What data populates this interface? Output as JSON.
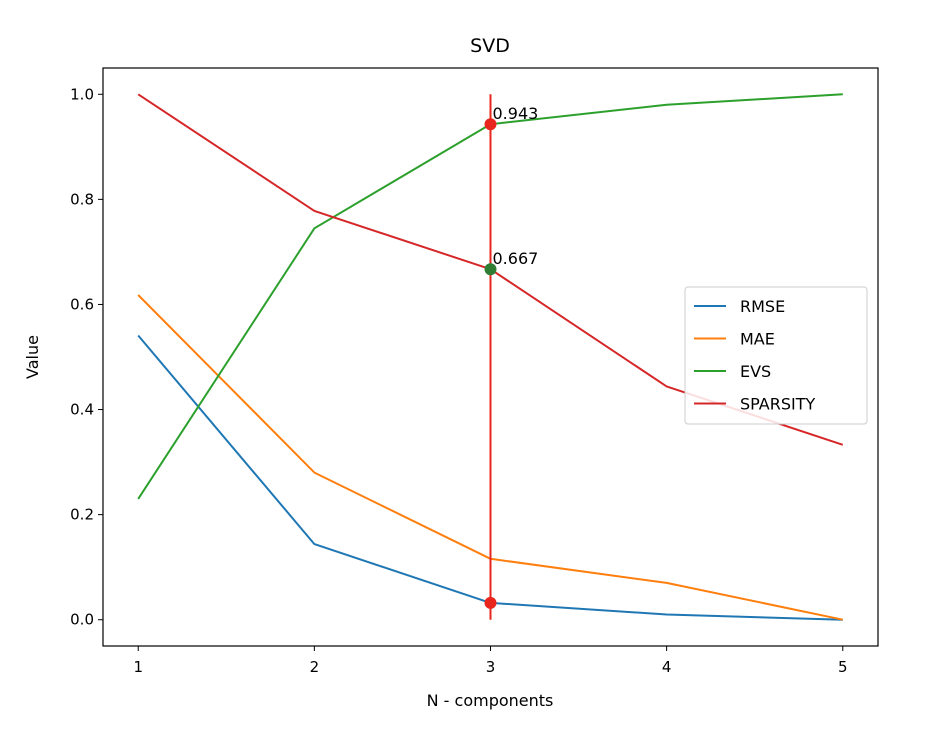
{
  "chart_data": {
    "type": "line",
    "title": "SVD",
    "xlabel": "N - components",
    "ylabel": "Value",
    "x": [
      1,
      2,
      3,
      4,
      5
    ],
    "xticks": [
      "1",
      "2",
      "3",
      "4",
      "5"
    ],
    "yticks": [
      "0.0",
      "0.2",
      "0.4",
      "0.6",
      "0.8",
      "1.0"
    ],
    "xlim": [
      0.8,
      5.2
    ],
    "ylim": [
      -0.05,
      1.05
    ],
    "grid": false,
    "legend_position": "center-right",
    "series": [
      {
        "name": "RMSE",
        "color": "#1f77b4",
        "values": [
          0.541,
          0.144,
          0.032,
          0.01,
          0.0
        ]
      },
      {
        "name": "MAE",
        "color": "#ff7f0e",
        "values": [
          0.618,
          0.28,
          0.116,
          0.07,
          0.0
        ]
      },
      {
        "name": "EVS",
        "color": "#2ca02c",
        "values": [
          0.23,
          0.745,
          0.943,
          0.98,
          1.0
        ]
      },
      {
        "name": "SPARSITY",
        "color": "#d62728",
        "values": [
          1.0,
          0.778,
          0.667,
          0.444,
          0.333
        ]
      }
    ],
    "vertical_marker": {
      "x": 3,
      "ymin": 0.0,
      "ymax": 1.0,
      "color": "#e8261e"
    },
    "marked_points": [
      {
        "x": 3,
        "y": 0.943,
        "color": "#e8261e"
      },
      {
        "x": 3,
        "y": 0.667,
        "color": "#2e7d32"
      },
      {
        "x": 3,
        "y": 0.032,
        "color": "#e8261e"
      }
    ],
    "annotations": [
      {
        "text": "0.943",
        "x": 3,
        "y": 0.943
      },
      {
        "text": "0.667",
        "x": 3,
        "y": 0.667
      }
    ]
  }
}
